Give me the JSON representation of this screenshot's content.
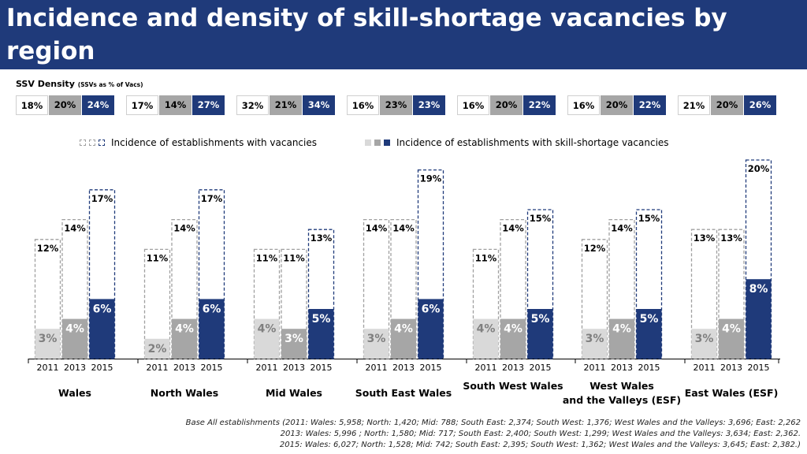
{
  "title": "Incidence and density of skill-shortage vacancies by region",
  "ssv_density": {
    "label": "SSV Density",
    "label_sub": "(SSVs as % of Vacs)",
    "regions": [
      [
        "18%",
        "20%",
        "24%"
      ],
      [
        "17%",
        "14%",
        "27%"
      ],
      [
        "32%",
        "21%",
        "34%"
      ],
      [
        "16%",
        "23%",
        "23%"
      ],
      [
        "16%",
        "20%",
        "22%"
      ],
      [
        "16%",
        "20%",
        "22%"
      ],
      [
        "21%",
        "20%",
        "26%"
      ]
    ]
  },
  "legend": {
    "vacancies": "Incidence of establishments with vacancies",
    "ssv": "Incidence of establishments with skill-shortage vacancies"
  },
  "colors": {
    "header": "#1f3a7a",
    "y2011": "#d9d9d9",
    "y2013": "#a6a6a6",
    "y2015": "#1f3a7a",
    "dash": "#a0a0a0",
    "dash2015": "#1f3a7a"
  },
  "chart_data": {
    "type": "bar",
    "years": [
      "2011",
      "2013",
      "2015"
    ],
    "regions": [
      {
        "name": [
          "Wales"
        ],
        "vacancies": [
          12,
          14,
          17
        ],
        "ssv": [
          3,
          4,
          6
        ]
      },
      {
        "name": [
          "North Wales"
        ],
        "vacancies": [
          11,
          14,
          17
        ],
        "ssv": [
          2,
          4,
          6
        ]
      },
      {
        "name": [
          "Mid Wales"
        ],
        "vacancies": [
          11,
          11,
          13
        ],
        "ssv": [
          4,
          3,
          5
        ]
      },
      {
        "name": [
          "South East Wales"
        ],
        "vacancies": [
          14,
          14,
          19
        ],
        "ssv": [
          3,
          4,
          6
        ]
      },
      {
        "name": [
          "South West Wales"
        ],
        "vacancies": [
          11,
          14,
          15
        ],
        "ssv": [
          4,
          4,
          5
        ]
      },
      {
        "name": [
          "West Wales",
          "and the Valleys (ESF)"
        ],
        "vacancies": [
          12,
          14,
          15
        ],
        "ssv": [
          3,
          4,
          5
        ]
      },
      {
        "name": [
          "East Wales (ESF)"
        ],
        "vacancies": [
          13,
          13,
          20
        ],
        "ssv": [
          3,
          4,
          8
        ]
      }
    ],
    "unit": "%",
    "ylim": [
      0,
      20
    ]
  },
  "footnote": [
    "Base All establishments (2011: Wales: 5,958; North: 1,420; Mid: 788; South East: 2,374; South West: 1,376; West Wales and the Valleys: 3,696; East: 2,262",
    "2013: Wales: 5,996 ; North: 1,580; Mid: 717; South East: 2,400; South West: 1,299; West Wales and the Valleys: 3,634; East: 2,362.",
    "2015: Wales: 6,027; North: 1,528; Mid: 742; South East: 2,395; South West: 1,362; West Wales and the Valleys: 3,645; East: 2,382.)"
  ]
}
